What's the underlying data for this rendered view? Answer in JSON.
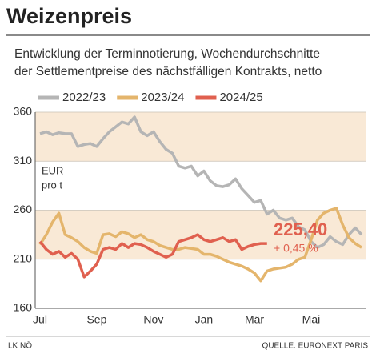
{
  "chart_data": {
    "type": "line",
    "title": "Weizenpreis",
    "subtitle": [
      "Entwicklung der Terminnotierung, Wochendurchschnitte",
      "der Settlementpreise des nächstfälligen Kontrakts, netto"
    ],
    "y_label": [
      "EUR",
      "pro t"
    ],
    "categories": [
      "Jul",
      null,
      null,
      null,
      null,
      null,
      null,
      null,
      null,
      "Sep",
      null,
      null,
      null,
      null,
      null,
      null,
      null,
      null,
      "Nov",
      null,
      null,
      null,
      null,
      null,
      null,
      null,
      "Jan",
      null,
      null,
      null,
      null,
      null,
      null,
      null,
      "Mär",
      null,
      null,
      null,
      null,
      null,
      null,
      null,
      null,
      "Mai",
      null,
      null,
      null,
      null,
      null,
      null,
      null,
      null
    ],
    "series": [
      {
        "name": "2022/23",
        "color": "#b5b5b5",
        "values": [
          338,
          340,
          337,
          339,
          338,
          338,
          325,
          327,
          328,
          325,
          333,
          340,
          345,
          350,
          348,
          355,
          340,
          336,
          340,
          330,
          322,
          318,
          305,
          303,
          305,
          295,
          300,
          290,
          285,
          284,
          286,
          292,
          282,
          275,
          268,
          270,
          256,
          260,
          252,
          250,
          252,
          243,
          240,
          228,
          222,
          225,
          233,
          228,
          225,
          235,
          242,
          235
        ]
      },
      {
        "name": "2023/24",
        "color": "#e4b56c",
        "values": [
          225,
          235,
          248,
          257,
          235,
          232,
          228,
          222,
          218,
          216,
          235,
          236,
          233,
          238,
          236,
          232,
          235,
          230,
          228,
          224,
          222,
          220,
          220,
          222,
          221,
          220,
          215,
          215,
          213,
          210,
          207,
          205,
          203,
          200,
          196,
          188,
          198,
          200,
          201,
          202,
          205,
          210,
          212,
          230,
          250,
          257,
          260,
          262,
          245,
          232,
          226,
          222
        ]
      },
      {
        "name": "2024/25",
        "color": "#e0604f",
        "values": [
          228,
          220,
          215,
          218,
          212,
          216,
          210,
          192,
          198,
          205,
          220,
          222,
          220,
          226,
          222,
          226,
          225,
          222,
          218,
          215,
          212,
          215,
          228,
          230,
          232,
          235,
          230,
          228,
          230,
          232,
          228,
          230,
          220,
          223,
          225,
          226,
          226,
          null,
          null,
          null,
          null,
          null,
          null,
          null,
          null,
          null,
          null,
          null,
          null,
          null,
          null,
          null
        ]
      }
    ],
    "ylim": [
      160,
      360
    ],
    "yticks": [
      160,
      210,
      260,
      310,
      360
    ],
    "bands": [
      [
        310,
        360
      ],
      [
        210,
        260
      ]
    ],
    "band_color": "#f9e9d6",
    "grid": true,
    "annotations": [
      "225,40",
      "+ 0,45 %"
    ],
    "footer_left": "LK NÖ",
    "footer_right": "QUELLE: EURONEXT PARIS"
  }
}
